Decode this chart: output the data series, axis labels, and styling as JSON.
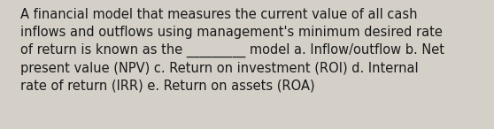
{
  "text": "A financial model that measures the current value of all cash\ninflows and outflows using management's minimum desired rate\nof return is known as the _________ model a. Inflow/outflow b. Net\npresent value (NPV) c. Return on investment (ROI) d. Internal\nrate of return (IRR) e. Return on assets (ROA)",
  "bg_color": "#d4d0c8",
  "text_color": "#1a1a1a",
  "font_size": 10.5,
  "font_family": "DejaVu Sans",
  "fig_width": 5.58,
  "fig_height": 1.46,
  "dpi": 100
}
